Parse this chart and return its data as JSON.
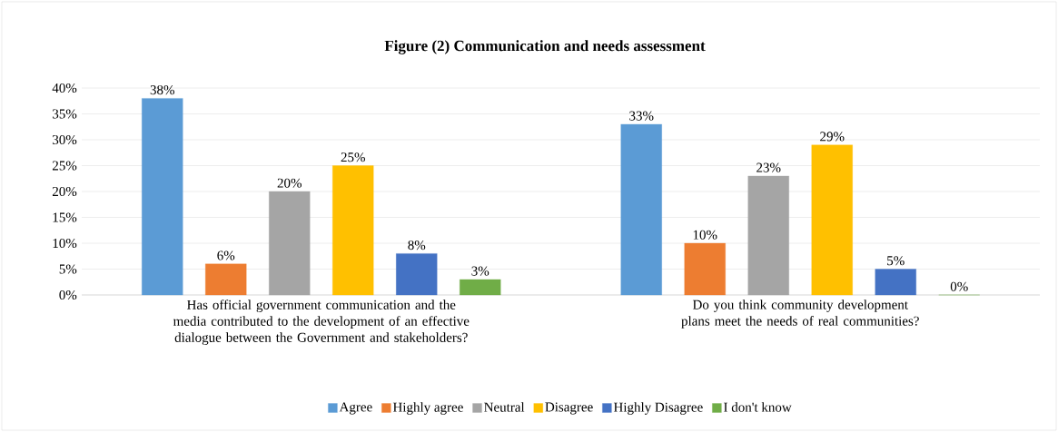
{
  "chart_data": {
    "type": "bar",
    "title": "Figure (2) Communication and needs assessment",
    "categories": [
      "Has official government communication and the media contributed to the development of an effective dialogue between the Government and stakeholders?",
      "Do you think community development plans meet the needs of real communities?"
    ],
    "series": [
      {
        "name": "Agree",
        "color": "#5b9bd5",
        "values": [
          38,
          33
        ],
        "value_labels": [
          "38%",
          "33%"
        ]
      },
      {
        "name": "Highly agree",
        "color": "#ed7d31",
        "values": [
          6,
          10
        ],
        "value_labels": [
          "6%",
          "10%"
        ]
      },
      {
        "name": "Neutral",
        "color": "#a5a5a5",
        "values": [
          20,
          23
        ],
        "value_labels": [
          "20%",
          "23%"
        ]
      },
      {
        "name": "Disagree",
        "color": "#ffc000",
        "values": [
          25,
          29
        ],
        "value_labels": [
          "25%",
          "29%"
        ]
      },
      {
        "name": "Highly Disagree",
        "color": "#4472c4",
        "values": [
          8,
          5
        ],
        "value_labels": [
          "8%",
          "5%"
        ]
      },
      {
        "name": "I don't know",
        "color": "#70ad47",
        "values": [
          3,
          0
        ],
        "value_labels": [
          "3%",
          "0%"
        ]
      }
    ],
    "ylim": [
      0,
      40
    ],
    "yticks": [
      {
        "value": 0,
        "label": "0%"
      },
      {
        "value": 5,
        "label": "5%"
      },
      {
        "value": 10,
        "label": "10%"
      },
      {
        "value": 15,
        "label": "15%"
      },
      {
        "value": 20,
        "label": "20%"
      },
      {
        "value": 25,
        "label": "25%"
      },
      {
        "value": 30,
        "label": "30%"
      },
      {
        "value": 35,
        "label": "35%"
      },
      {
        "value": 40,
        "label": "40%"
      }
    ],
    "grid": "y",
    "legend": "bottom"
  }
}
